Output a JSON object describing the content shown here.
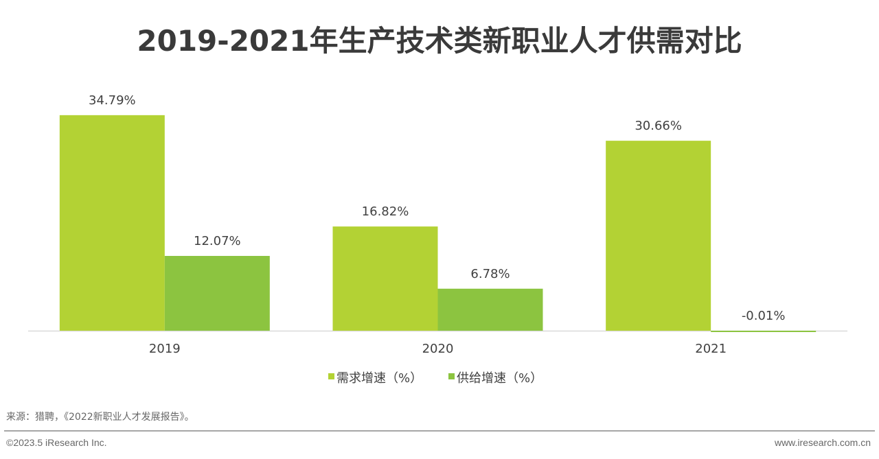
{
  "chart_data": {
    "type": "bar",
    "title": "2019-2021年生产技术类新职业人才供需对比",
    "categories": [
      "2019",
      "2020",
      "2021"
    ],
    "series": [
      {
        "name": "需求增速（%）",
        "values": [
          34.79,
          16.82,
          30.66
        ],
        "labels": [
          "34.79%",
          "16.82%",
          "30.66%"
        ],
        "color": "#b3d234"
      },
      {
        "name": "供给增速（%）",
        "values": [
          12.07,
          6.78,
          -0.01
        ],
        "labels": [
          "12.07%",
          "6.78%",
          "-0.01%"
        ],
        "color": "#8cc440"
      }
    ],
    "xlabel": "",
    "ylabel": "",
    "grid": false,
    "legend": "bottom"
  },
  "footer": {
    "source": "来源：猎聘，《2022新职业人才发展报告》。",
    "copyright": "©2023.5 iResearch Inc.",
    "website": "www.iresearch.com.cn"
  }
}
